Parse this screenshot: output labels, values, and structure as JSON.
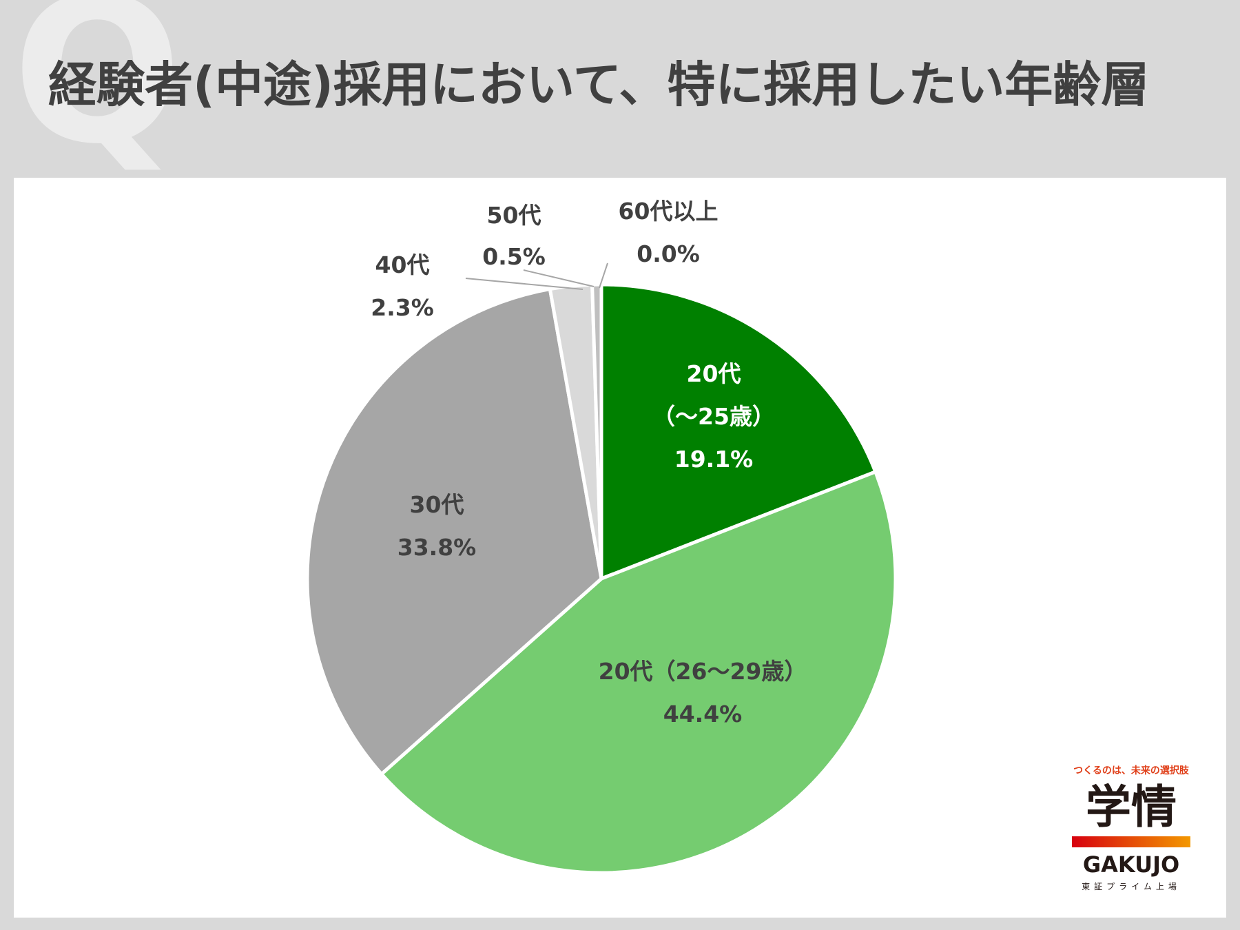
{
  "page": {
    "title": "経験者(中途)採用において、特に採用したい年齢層",
    "title_badge": "Q"
  },
  "chart_data": {
    "type": "pie",
    "start_angle_deg": 0,
    "direction": "clockwise",
    "slices": [
      {
        "name": "20代",
        "sub": "（～25歳）",
        "value": 19.1,
        "value_label": "19.1%",
        "color": "#008000",
        "label_color": "#ffffff"
      },
      {
        "name": "20代（26～29歳）",
        "value": 44.4,
        "value_label": "44.4%",
        "color": "#75cc70",
        "label_color": "#404040"
      },
      {
        "name": "30代",
        "value": 33.8,
        "value_label": "33.8%",
        "color": "#a6a6a6",
        "label_color": "#404040"
      },
      {
        "name": "40代",
        "value": 2.3,
        "value_label": "2.3%",
        "color": "#d9d9d9",
        "label_color": "#404040"
      },
      {
        "name": "50代",
        "value": 0.5,
        "value_label": "0.5%",
        "color": "#bfbfbf",
        "label_color": "#404040"
      },
      {
        "name": "60代以上",
        "value": 0.0,
        "value_label": "0.0%",
        "color": "#808080",
        "label_color": "#404040"
      }
    ]
  },
  "logo": {
    "tagline": "つくるのは、未来の選択肢",
    "kanji": "学情",
    "latin": "GAKUJO",
    "sub": "東証プライム上場"
  }
}
